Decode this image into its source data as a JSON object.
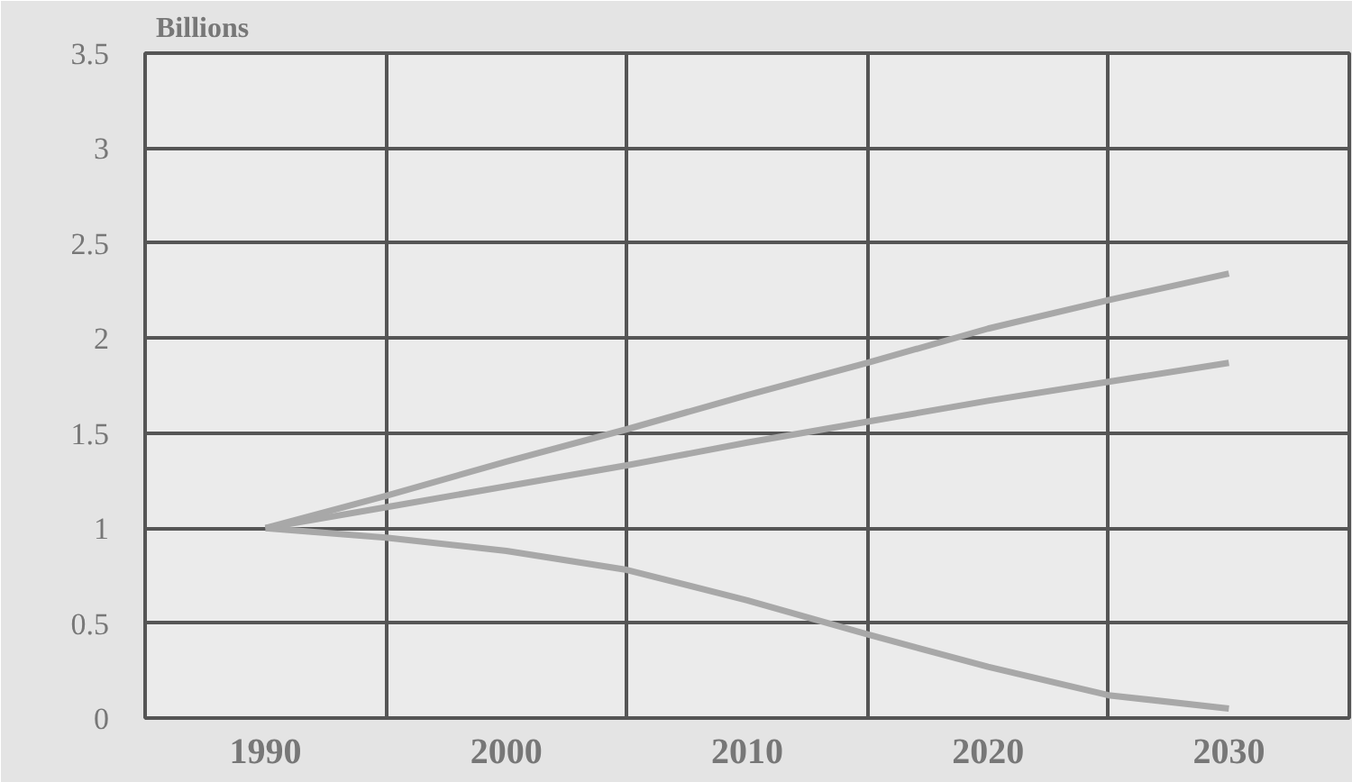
{
  "chart_data": {
    "type": "line",
    "ylabel": "Billions",
    "x": [
      1990,
      1995,
      2000,
      2005,
      2010,
      2015,
      2020,
      2025,
      2030
    ],
    "series": [
      {
        "color": "#a8a8a8",
        "values": [
          1.0,
          1.17,
          1.35,
          1.52,
          1.7,
          1.87,
          2.05,
          2.2,
          2.34
        ]
      },
      {
        "color": "#a8a8a8",
        "values": [
          1.0,
          1.11,
          1.22,
          1.33,
          1.45,
          1.56,
          1.67,
          1.77,
          1.87
        ]
      },
      {
        "color": "#a8a8a8",
        "values": [
          1.0,
          0.95,
          0.88,
          0.78,
          0.62,
          0.44,
          0.27,
          0.12,
          0.05
        ]
      }
    ],
    "xlim": [
      1985,
      2035
    ],
    "xticks": [
      {
        "value": 1985,
        "label": null
      },
      1990,
      {
        "value": 1995,
        "label": null
      },
      2000,
      {
        "value": 2005,
        "label": null
      },
      2010,
      {
        "value": 2015,
        "label": null
      },
      2020,
      {
        "value": 2025,
        "label": null
      },
      2030,
      {
        "value": 2035,
        "label": null
      }
    ],
    "ylim": [
      0,
      3.5
    ],
    "yticks": [
      0,
      0.5,
      1,
      1.5,
      2,
      2.5,
      3,
      3.5
    ],
    "grid": true,
    "line_style": "solid",
    "marker": "none"
  }
}
